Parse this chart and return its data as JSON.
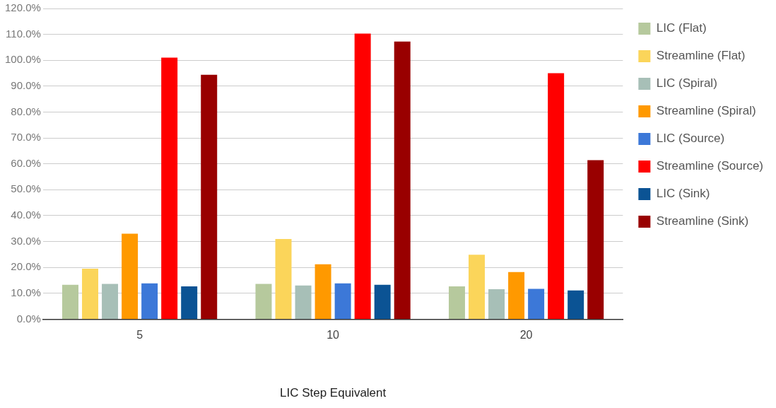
{
  "chart_data": {
    "type": "bar",
    "xlabel": "LIC Step Equivalent",
    "categories": [
      "5",
      "10",
      "20"
    ],
    "series": [
      {
        "name": "LIC (Flat)",
        "color": "#b6c99d",
        "values": [
          13.3,
          13.6,
          12.7
        ]
      },
      {
        "name": "Streamline (Flat)",
        "color": "#fbd55a",
        "values": [
          19.5,
          31,
          24.9
        ]
      },
      {
        "name": "LIC (Spiral)",
        "color": "#a7bfb7",
        "values": [
          13.6,
          13,
          11.6
        ]
      },
      {
        "name": "Streamline (Spiral)",
        "color": "#ff9900",
        "values": [
          33,
          21.2,
          18.2
        ]
      },
      {
        "name": "LIC (Source)",
        "color": "#3c78d8",
        "values": [
          13.8,
          13.8,
          11.7
        ]
      },
      {
        "name": "Streamline (Source)",
        "color": "#ff0000",
        "values": [
          101,
          110.3,
          95
        ]
      },
      {
        "name": "LIC (Sink)",
        "color": "#0b5394",
        "values": [
          12.7,
          13.3,
          11.1
        ]
      },
      {
        "name": "Streamline (Sink)",
        "color": "#990000",
        "values": [
          94.4,
          107.2,
          61.4
        ]
      }
    ],
    "ylim": [
      0,
      120
    ],
    "yticks": [
      {
        "value": 0,
        "label": "0.0%"
      },
      {
        "value": 10,
        "label": "10.0%"
      },
      {
        "value": 20,
        "label": "20.0%"
      },
      {
        "value": 30,
        "label": "30.0%"
      },
      {
        "value": 40,
        "label": "40.0%"
      },
      {
        "value": 50,
        "label": "50.0%"
      },
      {
        "value": 60,
        "label": "60.0%"
      },
      {
        "value": 70,
        "label": "70.0%"
      },
      {
        "value": 80,
        "label": "80.0%"
      },
      {
        "value": 90,
        "label": "90.0%"
      },
      {
        "value": 100,
        "label": "100.0%"
      },
      {
        "value": 110,
        "label": "110.0%"
      },
      {
        "value": 120,
        "label": "120.0%"
      }
    ],
    "grid": "y",
    "legend": "right"
  }
}
